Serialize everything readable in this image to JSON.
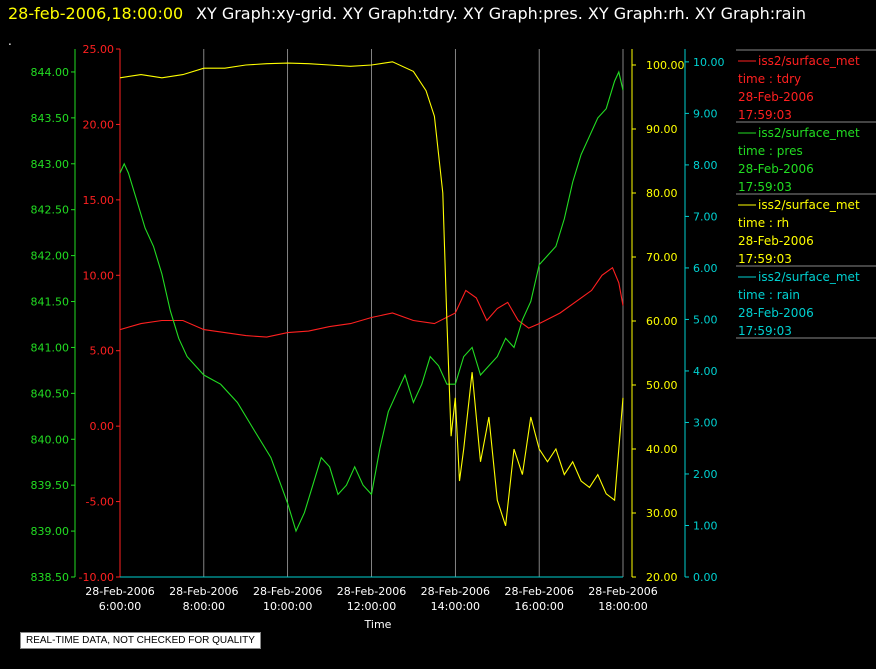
{
  "header": {
    "datetime": "28-feb-2006,18:00:00",
    "graphs": "XY Graph:xy-grid.  XY Graph:tdry.  XY Graph:pres.  XY Graph:rh.  XY Graph:rain",
    "dot": "."
  },
  "quality_note": "REAL-TIME DATA, NOT CHECKED FOR QUALITY",
  "colors": {
    "tdry": "#ff2020",
    "pres": "#22dd22",
    "rh": "#ffff00",
    "rain": "#00d0d0",
    "grid": "#bbbbbb"
  },
  "chart_data": {
    "type": "line",
    "xlabel": "Time",
    "x_ticks": [
      {
        "line1": "28-Feb-2006",
        "line2": "6:00:00"
      },
      {
        "line1": "28-Feb-2006",
        "line2": "8:00:00"
      },
      {
        "line1": "28-Feb-2006",
        "line2": "10:00:00"
      },
      {
        "line1": "28-Feb-2006",
        "line2": "12:00:00"
      },
      {
        "line1": "28-Feb-2006",
        "line2": "14:00:00"
      },
      {
        "line1": "28-Feb-2006",
        "line2": "16:00:00"
      },
      {
        "line1": "28-Feb-2006",
        "line2": "18:00:00"
      }
    ],
    "xlim_hours": [
      6,
      18
    ],
    "axes": {
      "pres": {
        "ylim": [
          838.5,
          844.25
        ],
        "ticks": [
          "838.50",
          "839.00",
          "839.50",
          "840.00",
          "840.50",
          "841.00",
          "841.50",
          "842.00",
          "842.50",
          "843.00",
          "843.50",
          "844.00"
        ]
      },
      "tdry": {
        "ylim": [
          -10,
          25
        ],
        "ticks": [
          "-10.00",
          "-5.00",
          "0.00",
          "5.00",
          "10.00",
          "15.00",
          "20.00",
          "25.00"
        ]
      },
      "rh": {
        "ylim": [
          20,
          102.5
        ],
        "ticks": [
          "20.00",
          "30.00",
          "40.00",
          "50.00",
          "60.00",
          "70.00",
          "80.00",
          "90.00",
          "100.00"
        ]
      },
      "rain": {
        "ylim": [
          0,
          10.25
        ],
        "ticks": [
          "0.00",
          "1.00",
          "2.00",
          "3.00",
          "4.00",
          "5.00",
          "6.00",
          "7.00",
          "8.00",
          "9.00",
          "10.00"
        ]
      }
    },
    "legend": [
      {
        "key": "tdry",
        "line1": "iss2/surface_met",
        "line2": "time : tdry",
        "line3": "28-Feb-2006",
        "line4": "17:59:03"
      },
      {
        "key": "pres",
        "line1": "iss2/surface_met",
        "line2": "time : pres",
        "line3": "28-Feb-2006",
        "line4": "17:59:03"
      },
      {
        "key": "rh",
        "line1": "iss2/surface_met",
        "line2": "time : rh",
        "line3": "28-Feb-2006",
        "line4": "17:59:03"
      },
      {
        "key": "rain",
        "line1": "iss2/surface_met",
        "line2": "time : rain",
        "line3": "28-Feb-2006",
        "line4": "17:59:03"
      }
    ],
    "series": [
      {
        "key": "tdry",
        "x": [
          6,
          6.5,
          7,
          7.5,
          8,
          8.5,
          9,
          9.5,
          10,
          10.5,
          11,
          11.5,
          12,
          12.5,
          13,
          13.5,
          14,
          14.25,
          14.5,
          14.75,
          15,
          15.25,
          15.5,
          15.75,
          16,
          16.5,
          17,
          17.25,
          17.5,
          17.75,
          17.9,
          18
        ],
        "y": [
          6.4,
          6.8,
          7.0,
          7.0,
          6.4,
          6.2,
          6.0,
          5.9,
          6.2,
          6.3,
          6.6,
          6.8,
          7.2,
          7.5,
          7.0,
          6.8,
          7.5,
          9.0,
          8.5,
          7.0,
          7.8,
          8.2,
          7.0,
          6.5,
          6.8,
          7.5,
          8.5,
          9.0,
          10.0,
          10.5,
          9.5,
          8.0
        ]
      },
      {
        "key": "pres",
        "x": [
          6,
          6.1,
          6.2,
          6.4,
          6.6,
          6.8,
          7,
          7.2,
          7.4,
          7.6,
          7.8,
          8,
          8.4,
          8.8,
          9.2,
          9.6,
          10,
          10.2,
          10.4,
          10.6,
          10.8,
          11,
          11.2,
          11.4,
          11.6,
          11.8,
          12,
          12.2,
          12.4,
          12.6,
          12.8,
          13,
          13.2,
          13.4,
          13.6,
          13.8,
          14,
          14.2,
          14.4,
          14.6,
          14.8,
          15,
          15.2,
          15.4,
          15.6,
          15.8,
          16,
          16.2,
          16.4,
          16.6,
          16.8,
          17,
          17.2,
          17.4,
          17.6,
          17.8,
          17.9,
          18
        ],
        "y": [
          842.9,
          843.0,
          842.9,
          842.6,
          842.3,
          842.1,
          841.8,
          841.4,
          841.1,
          840.9,
          840.8,
          840.7,
          840.6,
          840.4,
          840.1,
          839.8,
          839.3,
          839.0,
          839.2,
          839.5,
          839.8,
          839.7,
          839.4,
          839.5,
          839.7,
          839.5,
          839.4,
          839.9,
          840.3,
          840.5,
          840.7,
          840.4,
          840.6,
          840.9,
          840.8,
          840.6,
          840.6,
          840.9,
          841.0,
          840.7,
          840.8,
          840.9,
          841.1,
          841.0,
          841.3,
          841.5,
          841.9,
          842.0,
          842.1,
          842.4,
          842.8,
          843.1,
          843.3,
          843.5,
          843.6,
          843.9,
          844.0,
          843.8
        ]
      },
      {
        "key": "rh",
        "x": [
          6,
          6.5,
          7,
          7.5,
          8,
          8.5,
          9,
          9.5,
          10,
          10.5,
          11,
          11.5,
          12,
          12.5,
          13,
          13.3,
          13.5,
          13.7,
          13.8,
          13.9,
          14,
          14.1,
          14.2,
          14.4,
          14.6,
          14.8,
          15,
          15.2,
          15.4,
          15.6,
          15.8,
          16,
          16.2,
          16.4,
          16.6,
          16.8,
          17,
          17.2,
          17.4,
          17.6,
          17.8,
          17.9,
          18
        ],
        "y": [
          98.0,
          98.5,
          98.0,
          98.5,
          99.5,
          99.5,
          100.0,
          100.2,
          100.3,
          100.2,
          100.0,
          99.8,
          100.0,
          100.5,
          99.0,
          96.0,
          92.0,
          80.0,
          60.0,
          42.0,
          48.0,
          35.0,
          40.0,
          52.0,
          38.0,
          45.0,
          32.0,
          28.0,
          40.0,
          36.0,
          45.0,
          40.0,
          38.0,
          40.0,
          36.0,
          38.0,
          35.0,
          34.0,
          36.0,
          33.0,
          32.0,
          40.0,
          48.0
        ]
      },
      {
        "key": "rain",
        "x": [
          6,
          18
        ],
        "y": [
          0.0,
          0.0
        ]
      }
    ]
  }
}
